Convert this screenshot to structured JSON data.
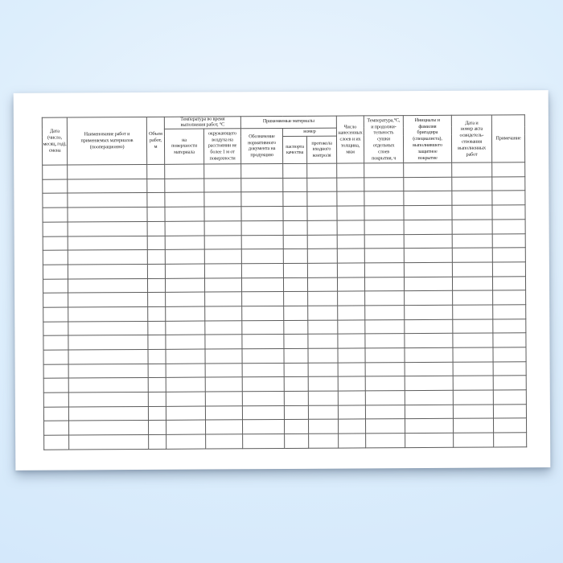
{
  "colors": {
    "bg_center": "#f0f7fe",
    "bg_edge": "#cfe5fa",
    "paper": "#ffffff",
    "grid_line": "#5c5c5c",
    "outer_border": "#3a3a3a",
    "text": "#1c1c1c"
  },
  "table": {
    "row_count": 20,
    "column_count": 13,
    "groups": {
      "temperature": "Температура во время\nвыполнения работ, °С",
      "materials": "Применяемые материалы",
      "number": "номер"
    },
    "columns": {
      "date": "Дата\n(число,\nмесяц, год),\nсмена",
      "work_name": "Наименование работ и\nприменяемых материалов\n(пооперационно)",
      "volume": "Объем\nработ,\nм",
      "temp_surface": "на\nповерхности\nматериала",
      "temp_air": "окружающего\nвоздуха на\nрасстоянии не\nболее 1 м от\nповерхности",
      "doc_designation": "Обозначение\nнормативного\nдокумента на\nпродукцию",
      "quality_passport": "паспорта\nкачества",
      "input_control": "протокола\nвходного\nконтроля",
      "layers": "Число\nнанесенных\nслоев и их\nтолщина,\nмкм",
      "drying": "Температура,°С,\nи продолжи-\nтельность\nсушки\nотдельных\nслоев\nпокрытия, ч",
      "foreman": "Инициалы и\nфамилия\nбригадира\n(специалиста),\nвыполнявшего\nзащитное\nпокрытие",
      "act": "Дата и\nномер акта\nосвидетель-\nствования\nвыполненных\nработ",
      "note": "Примечание"
    }
  }
}
